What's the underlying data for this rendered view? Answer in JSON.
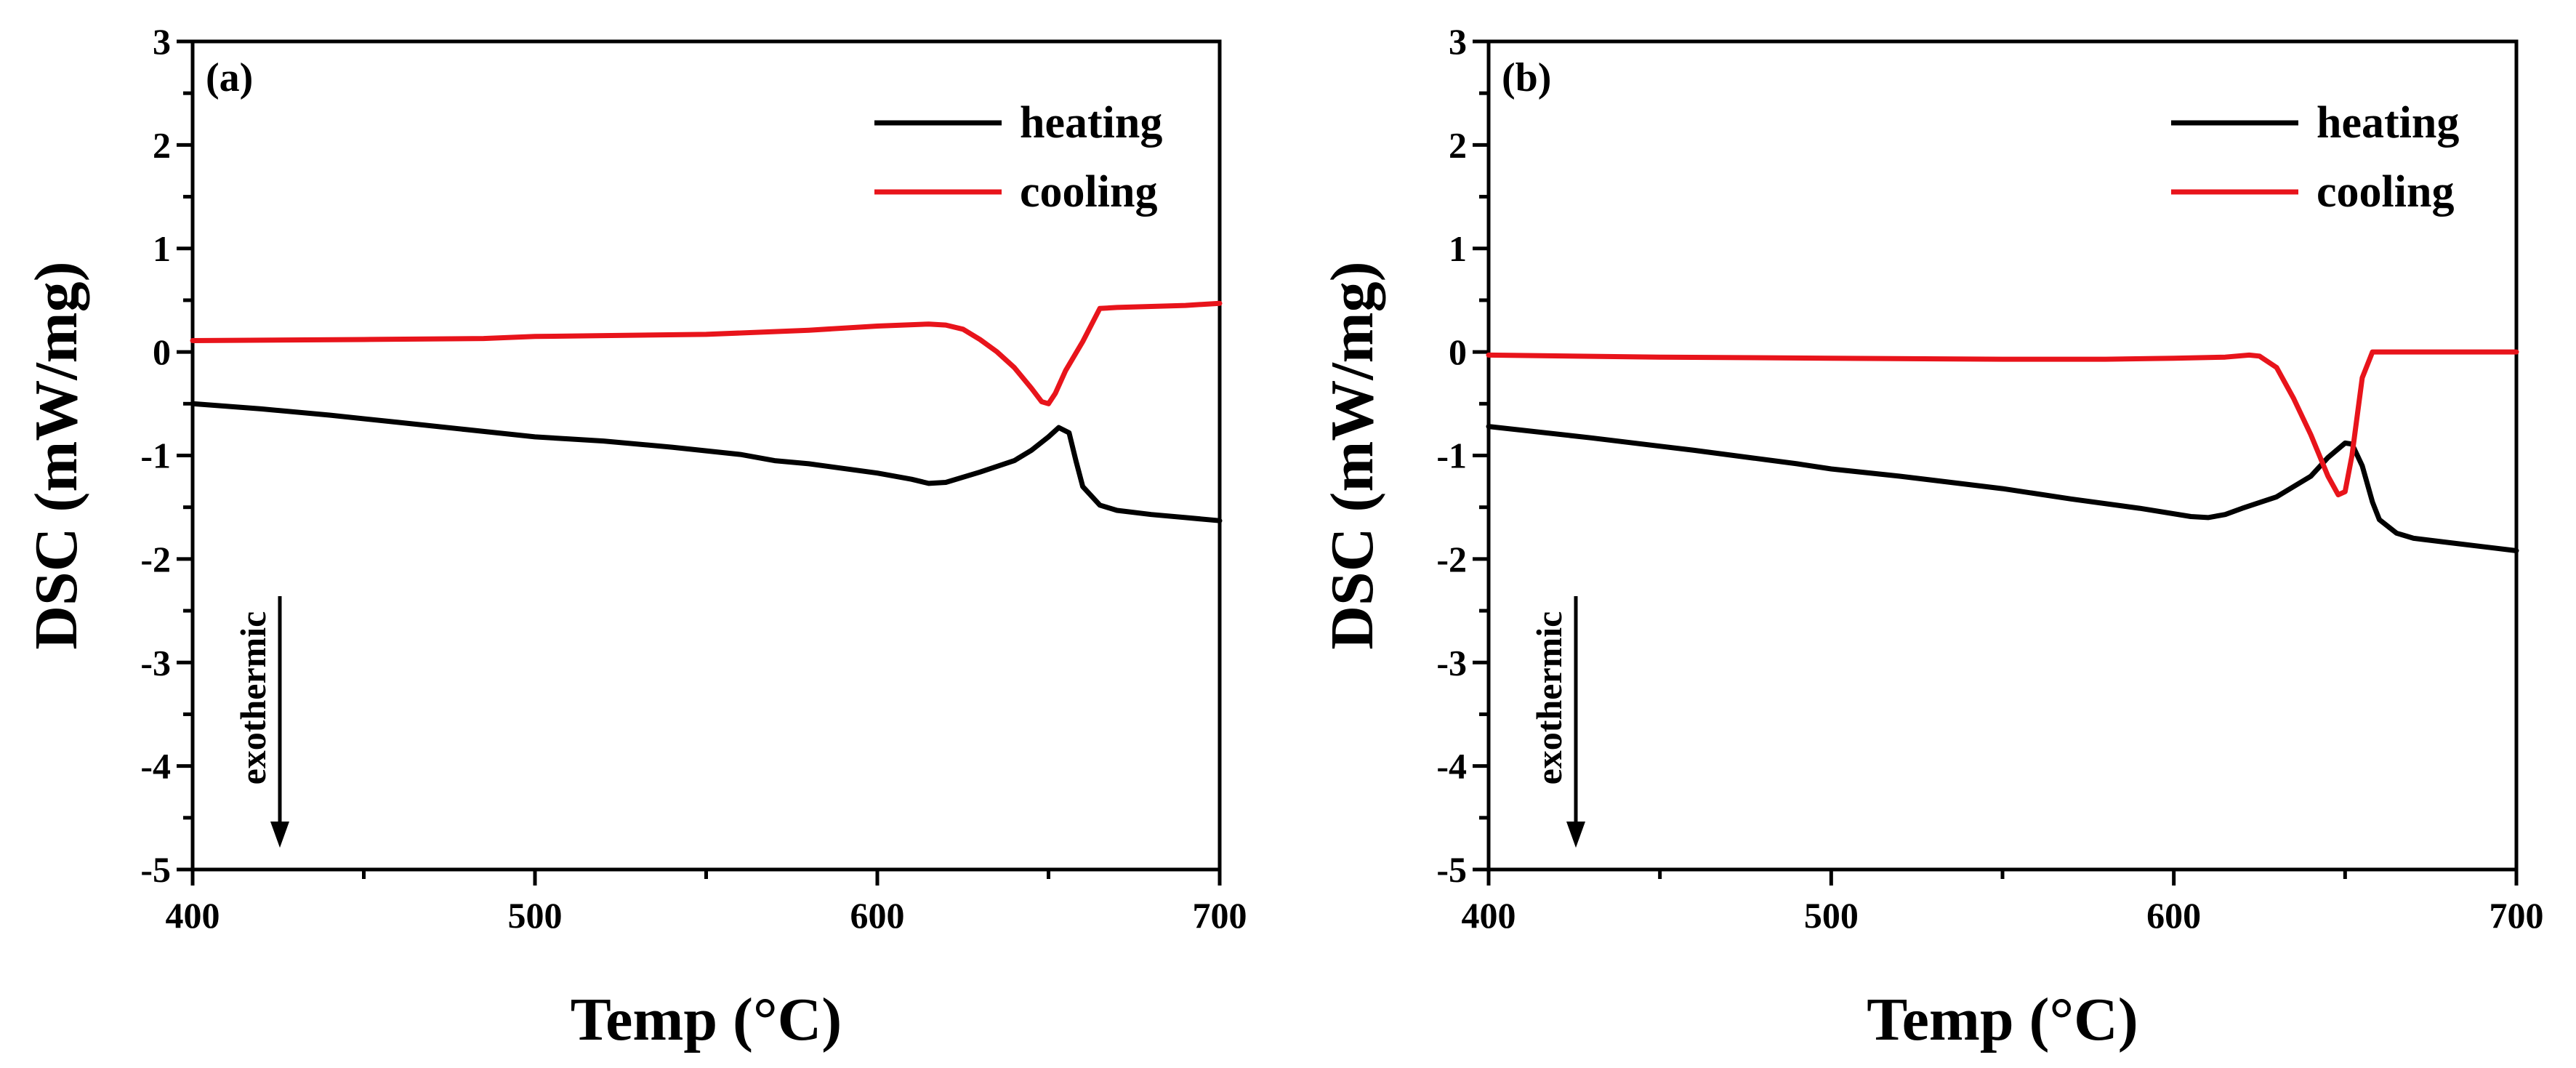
{
  "colors": {
    "heating": "#000000",
    "cooling": "#e8141b",
    "axis": "#000000"
  },
  "chart_data": [
    {
      "type": "line",
      "panel_label": "(a)",
      "xlabel": "Temp (°C)",
      "ylabel": "DSC (mW/mg)",
      "xlim": [
        400,
        700
      ],
      "ylim": [
        -5,
        3
      ],
      "xticks": [
        400,
        500,
        600,
        700
      ],
      "yticks": [
        -5,
        -4,
        -3,
        -2,
        -1,
        0,
        1,
        2,
        3
      ],
      "annotation": "exothermic",
      "legend_position": "top-right",
      "series": [
        {
          "name": "heating",
          "color": "#000000",
          "x": [
            400,
            420,
            440,
            460,
            480,
            500,
            510,
            520,
            540,
            560,
            570,
            580,
            600,
            610,
            615,
            620,
            630,
            640,
            645,
            650,
            653,
            656,
            658,
            660,
            665,
            670,
            680,
            690,
            700
          ],
          "y": [
            -0.5,
            -0.55,
            -0.61,
            -0.68,
            -0.75,
            -0.82,
            -0.84,
            -0.86,
            -0.92,
            -0.99,
            -1.05,
            -1.08,
            -1.17,
            -1.23,
            -1.27,
            -1.26,
            -1.16,
            -1.05,
            -0.95,
            -0.82,
            -0.73,
            -0.78,
            -1.05,
            -1.3,
            -1.48,
            -1.53,
            -1.57,
            -1.6,
            -1.63
          ]
        },
        {
          "name": "cooling",
          "color": "#e8141b",
          "x": [
            400,
            450,
            485,
            500,
            550,
            580,
            600,
            615,
            620,
            625,
            630,
            635,
            640,
            645,
            648,
            650,
            652,
            655,
            660,
            665,
            670,
            680,
            690,
            700
          ],
          "y": [
            0.11,
            0.12,
            0.13,
            0.15,
            0.17,
            0.21,
            0.25,
            0.27,
            0.26,
            0.22,
            0.12,
            0.0,
            -0.15,
            -0.35,
            -0.48,
            -0.5,
            -0.4,
            -0.18,
            0.1,
            0.42,
            0.43,
            0.44,
            0.45,
            0.47
          ]
        }
      ]
    },
    {
      "type": "line",
      "panel_label": "(b)",
      "xlabel": "Temp (°C)",
      "ylabel": "DSC (mW/mg)",
      "xlim": [
        400,
        700
      ],
      "ylim": [
        -5,
        3
      ],
      "xticks": [
        400,
        500,
        600,
        700
      ],
      "yticks": [
        -5,
        -4,
        -3,
        -2,
        -1,
        0,
        1,
        2,
        3
      ],
      "annotation": "exothermic",
      "legend_position": "top-right",
      "series": [
        {
          "name": "heating",
          "color": "#000000",
          "x": [
            400,
            430,
            460,
            490,
            500,
            520,
            550,
            570,
            590,
            605,
            610,
            615,
            620,
            630,
            640,
            645,
            650,
            652,
            655,
            658,
            660,
            665,
            670,
            680,
            690,
            700
          ],
          "y": [
            -0.72,
            -0.83,
            -0.95,
            -1.08,
            -1.13,
            -1.2,
            -1.32,
            -1.42,
            -1.51,
            -1.59,
            -1.6,
            -1.57,
            -1.51,
            -1.4,
            -1.2,
            -1.02,
            -0.88,
            -0.89,
            -1.1,
            -1.45,
            -1.62,
            -1.75,
            -1.8,
            -1.84,
            -1.88,
            -1.92
          ]
        },
        {
          "name": "cooling",
          "color": "#e8141b",
          "x": [
            400,
            450,
            500,
            550,
            580,
            600,
            615,
            622,
            625,
            630,
            635,
            640,
            645,
            648,
            650,
            652,
            655,
            658,
            660,
            670,
            680,
            700
          ],
          "y": [
            -0.03,
            -0.05,
            -0.06,
            -0.07,
            -0.07,
            -0.06,
            -0.05,
            -0.03,
            -0.04,
            -0.15,
            -0.45,
            -0.8,
            -1.2,
            -1.38,
            -1.35,
            -1.0,
            -0.25,
            0.0,
            0.0,
            0.0,
            0.0,
            0.0
          ]
        }
      ]
    }
  ]
}
